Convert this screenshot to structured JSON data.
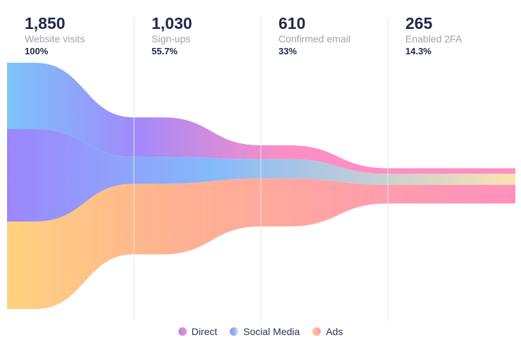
{
  "chart_data": {
    "type": "funnel",
    "stages": [
      {
        "value": "1,850",
        "label": "Website visits",
        "percent": "100%"
      },
      {
        "value": "1,030",
        "label": "Sign-ups",
        "percent": "55.7%"
      },
      {
        "value": "610",
        "label": "Confirmed email",
        "percent": "33%"
      },
      {
        "value": "265",
        "label": "Enabled 2FA",
        "percent": "14.3%"
      }
    ],
    "series": [
      {
        "name": "Direct",
        "values": [
          498,
          297,
          104,
          42
        ],
        "colors": [
          "#7cc4fa",
          "#a08afa",
          "#ff8ec4"
        ]
      },
      {
        "name": "Social Media",
        "values": [
          695,
          202,
          146,
          83
        ],
        "colors": [
          "#9d86fb",
          "#84b9fb",
          "#fbe3b0"
        ]
      },
      {
        "name": "Ads",
        "values": [
          657,
          531,
          360,
          140
        ],
        "colors": [
          "#ffd27f",
          "#ffb48f",
          "#ff90be"
        ]
      }
    ],
    "legend_position": "bottom"
  }
}
